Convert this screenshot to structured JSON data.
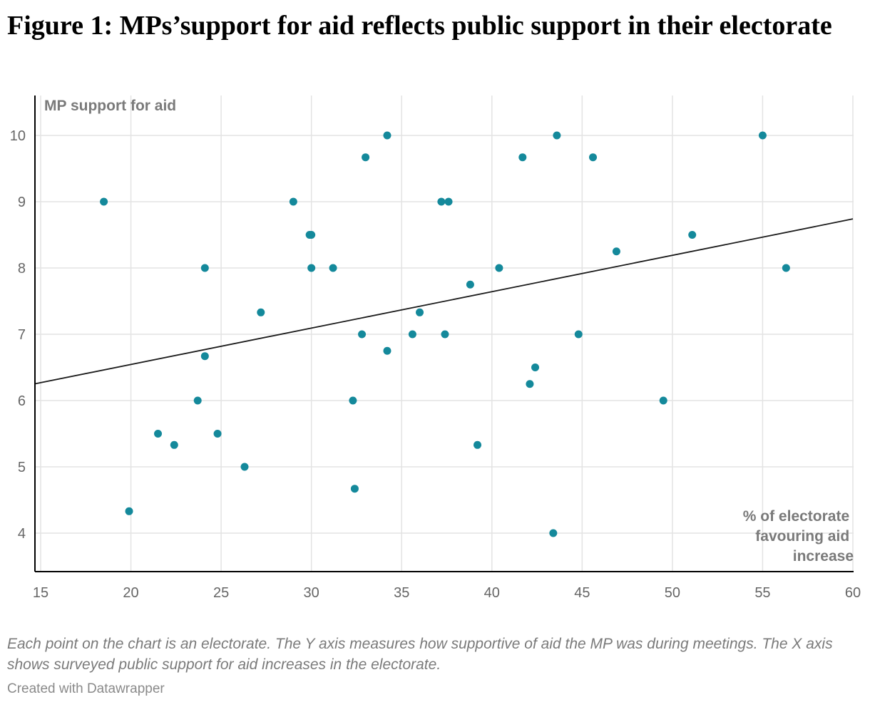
{
  "title": "Figure 1: MPs’support for aid reflects public support in their electorate",
  "notes": "Each point on the chart is an electorate. The Y axis measures how supportive of aid the MP was during meetings. The X axis shows surveyed public support for aid increases in the electorate.",
  "credit": "Created with Datawrapper",
  "colors": {
    "point": "#14899b",
    "trend": "#1a1a1a",
    "grid": "#e3e3e3",
    "axis": "#000000"
  },
  "chart_data": {
    "type": "scatter",
    "ylabel": "MP support for aid",
    "xlabel_lines": [
      "% of electorate",
      "favouring aid",
      "increase"
    ],
    "xlim": [
      15,
      60
    ],
    "ylim": [
      3.4,
      10.6
    ],
    "xticks": [
      15,
      20,
      25,
      30,
      35,
      40,
      45,
      50,
      55,
      60
    ],
    "yticks": [
      4,
      5,
      6,
      7,
      8,
      9,
      10
    ],
    "grid": true,
    "points": [
      {
        "x": 18.5,
        "y": 9.0
      },
      {
        "x": 19.9,
        "y": 4.33
      },
      {
        "x": 21.5,
        "y": 5.5
      },
      {
        "x": 22.4,
        "y": 5.33
      },
      {
        "x": 23.7,
        "y": 6.0
      },
      {
        "x": 24.1,
        "y": 8.0
      },
      {
        "x": 24.1,
        "y": 6.67
      },
      {
        "x": 24.8,
        "y": 5.5
      },
      {
        "x": 26.3,
        "y": 5.0
      },
      {
        "x": 27.2,
        "y": 7.33
      },
      {
        "x": 29.0,
        "y": 9.0
      },
      {
        "x": 29.9,
        "y": 8.5
      },
      {
        "x": 30.0,
        "y": 8.5
      },
      {
        "x": 30.0,
        "y": 8.0
      },
      {
        "x": 31.2,
        "y": 8.0
      },
      {
        "x": 32.3,
        "y": 6.0
      },
      {
        "x": 32.4,
        "y": 4.67
      },
      {
        "x": 32.8,
        "y": 7.0
      },
      {
        "x": 33.0,
        "y": 9.67
      },
      {
        "x": 34.2,
        "y": 10.0
      },
      {
        "x": 34.2,
        "y": 6.75
      },
      {
        "x": 35.6,
        "y": 7.0
      },
      {
        "x": 36.0,
        "y": 7.33
      },
      {
        "x": 37.2,
        "y": 9.0
      },
      {
        "x": 37.4,
        "y": 7.0
      },
      {
        "x": 37.6,
        "y": 9.0
      },
      {
        "x": 38.8,
        "y": 7.75
      },
      {
        "x": 39.2,
        "y": 5.33
      },
      {
        "x": 40.4,
        "y": 8.0
      },
      {
        "x": 41.7,
        "y": 9.67
      },
      {
        "x": 42.1,
        "y": 6.25
      },
      {
        "x": 42.4,
        "y": 6.5
      },
      {
        "x": 43.4,
        "y": 4.0
      },
      {
        "x": 43.6,
        "y": 10.0
      },
      {
        "x": 44.8,
        "y": 7.0
      },
      {
        "x": 45.6,
        "y": 9.67
      },
      {
        "x": 46.9,
        "y": 8.25
      },
      {
        "x": 49.5,
        "y": 6.0
      },
      {
        "x": 51.1,
        "y": 8.5
      },
      {
        "x": 55.0,
        "y": 10.0
      },
      {
        "x": 56.3,
        "y": 8.0
      }
    ],
    "trendline": {
      "x": [
        15,
        60
      ],
      "y": [
        6.27,
        8.74
      ]
    }
  }
}
